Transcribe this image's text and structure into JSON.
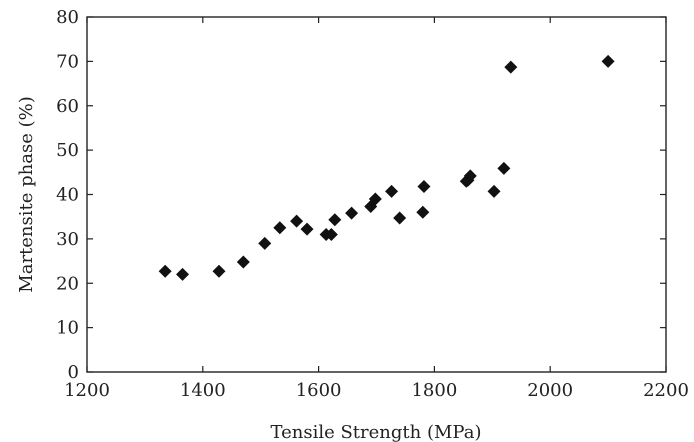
{
  "chart_data": {
    "type": "scatter",
    "xlabel": "Tensile Strength (MPa)",
    "ylabel": "Martensite phase (%)",
    "xlim": [
      1200,
      2200
    ],
    "ylim": [
      0,
      80
    ],
    "xticks": [
      1200,
      1400,
      1600,
      1800,
      2000,
      2200
    ],
    "yticks": [
      0,
      10,
      20,
      30,
      40,
      50,
      60,
      70,
      80
    ],
    "xtick_labels": [
      "1200",
      "1400",
      "1600",
      "1800",
      "2000",
      "2200"
    ],
    "ytick_labels": [
      "0",
      "10",
      "20",
      "30",
      "40",
      "50",
      "60",
      "70",
      "80"
    ],
    "grid": false,
    "marker": "diamond",
    "marker_color": "#111111",
    "points": [
      {
        "x": 1335,
        "y": 22.7
      },
      {
        "x": 1365,
        "y": 22.0
      },
      {
        "x": 1428,
        "y": 22.7
      },
      {
        "x": 1470,
        "y": 24.8
      },
      {
        "x": 1507,
        "y": 29.0
      },
      {
        "x": 1533,
        "y": 32.5
      },
      {
        "x": 1562,
        "y": 34.0
      },
      {
        "x": 1580,
        "y": 32.2
      },
      {
        "x": 1613,
        "y": 31.0
      },
      {
        "x": 1622,
        "y": 31.0
      },
      {
        "x": 1628,
        "y": 34.3
      },
      {
        "x": 1657,
        "y": 35.8
      },
      {
        "x": 1690,
        "y": 37.3
      },
      {
        "x": 1698,
        "y": 39.0
      },
      {
        "x": 1726,
        "y": 40.7
      },
      {
        "x": 1740,
        "y": 34.7
      },
      {
        "x": 1780,
        "y": 36.0
      },
      {
        "x": 1782,
        "y": 41.8
      },
      {
        "x": 1855,
        "y": 43.0
      },
      {
        "x": 1858,
        "y": 43.2
      },
      {
        "x": 1862,
        "y": 44.2
      },
      {
        "x": 1903,
        "y": 40.7
      },
      {
        "x": 1920,
        "y": 45.9
      },
      {
        "x": 1932,
        "y": 68.7
      },
      {
        "x": 2100,
        "y": 70.0
      }
    ]
  }
}
